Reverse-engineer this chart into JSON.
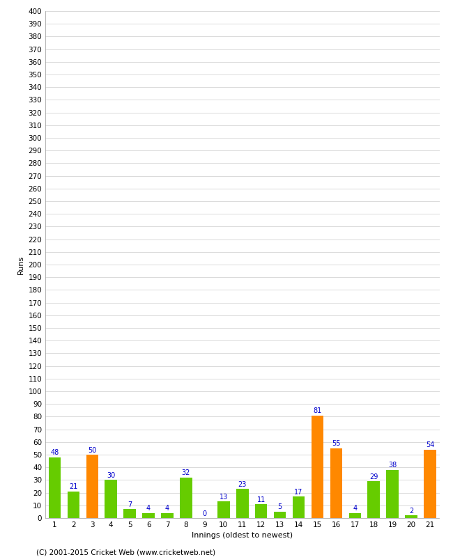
{
  "title": "",
  "xlabel": "Innings (oldest to newest)",
  "ylabel": "Runs",
  "innings": [
    1,
    2,
    3,
    4,
    5,
    6,
    7,
    8,
    9,
    10,
    11,
    12,
    13,
    14,
    15,
    16,
    17,
    18,
    19,
    20,
    21
  ],
  "values": [
    48,
    21,
    50,
    30,
    7,
    4,
    4,
    32,
    0,
    13,
    23,
    11,
    5,
    17,
    81,
    55,
    4,
    29,
    38,
    2,
    54
  ],
  "bar_colors": [
    "#66cc00",
    "#66cc00",
    "#ff8800",
    "#66cc00",
    "#66cc00",
    "#66cc00",
    "#66cc00",
    "#66cc00",
    "#66cc00",
    "#66cc00",
    "#66cc00",
    "#66cc00",
    "#66cc00",
    "#66cc00",
    "#ff8800",
    "#ff8800",
    "#66cc00",
    "#66cc00",
    "#66cc00",
    "#66cc00",
    "#ff8800"
  ],
  "label_color": "#0000cc",
  "ylim": [
    0,
    400
  ],
  "background_color": "#ffffff",
  "grid_color": "#cccccc",
  "axis_label_fontsize": 8,
  "tick_fontsize": 7.5,
  "value_fontsize": 7,
  "footer": "(C) 2001-2015 Cricket Web (www.cricketweb.net)"
}
